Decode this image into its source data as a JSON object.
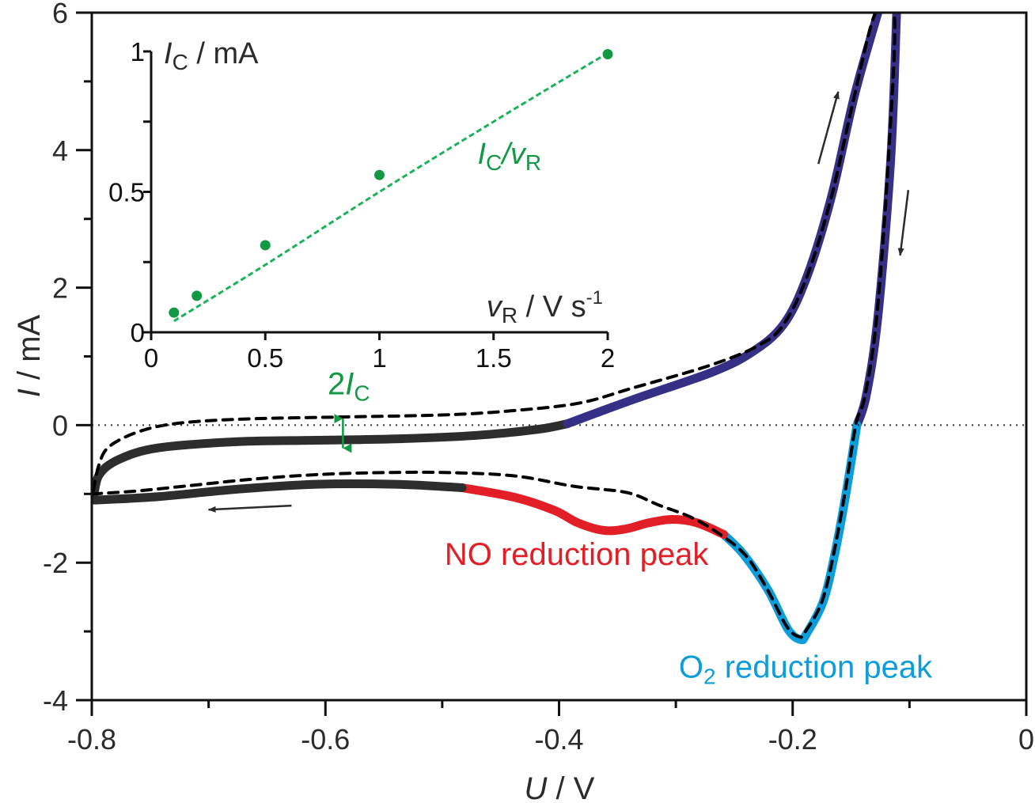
{
  "chart_data": [
    {
      "id": "main",
      "type": "line",
      "title": "",
      "xlabel": "U / V",
      "xlabel_parts": {
        "symbol": "U",
        "unit": " / V"
      },
      "ylabel": "I / mA",
      "ylabel_parts": {
        "symbol": "I",
        "unit": " / mA"
      },
      "xlim": [
        -0.8,
        0
      ],
      "ylim": [
        -4,
        6
      ],
      "xticks": [
        -0.8,
        -0.6,
        -0.4,
        -0.2,
        0
      ],
      "xtick_labels": [
        "-0.8",
        "-0.6",
        "-0.4",
        "-0.2",
        "0"
      ],
      "xminor": [
        -0.7,
        -0.5,
        -0.3,
        -0.1
      ],
      "yticks": [
        -4,
        -2,
        0,
        2,
        4,
        6
      ],
      "ytick_labels": [
        "-4",
        "-2",
        "0",
        "2",
        "4",
        "6"
      ],
      "yminor": [
        -3,
        -1,
        1,
        3,
        5
      ],
      "zero_line": "dotted",
      "grid": false,
      "series": [
        {
          "name": "solid-baseline-forward",
          "color": "#2d2d2d",
          "style": "solid",
          "points": [
            [
              -0.7986,
              -1.09
            ],
            [
              -0.7939,
              -0.73
            ],
            [
              -0.777,
              -0.5
            ],
            [
              -0.743,
              -0.33
            ],
            [
              -0.675,
              -0.24
            ],
            [
              -0.608,
              -0.22
            ],
            [
              -0.54,
              -0.2
            ],
            [
              -0.472,
              -0.15
            ],
            [
              -0.418,
              -0.06
            ],
            [
              -0.393,
              0.02
            ]
          ]
        },
        {
          "name": "solid-oxidation",
          "color": "#362f86",
          "style": "solid",
          "points": [
            [
              -0.393,
              0.02
            ],
            [
              -0.337,
              0.37
            ],
            [
              -0.269,
              0.77
            ],
            [
              -0.235,
              1.06
            ],
            [
              -0.208,
              1.46
            ],
            [
              -0.188,
              2.15
            ],
            [
              -0.167,
              3.31
            ],
            [
              -0.147,
              4.8
            ],
            [
              -0.127,
              6.0
            ]
          ]
        },
        {
          "name": "solid-return-oxidation",
          "color": "#362f86",
          "style": "solid",
          "points": [
            [
              -0.111,
              6.0
            ],
            [
              -0.116,
              3.88
            ],
            [
              -0.127,
              1.58
            ],
            [
              -0.137,
              0.43
            ],
            [
              -0.145,
              0.0
            ]
          ]
        },
        {
          "name": "solid-O2-reduction",
          "color": "#0d9ddb",
          "style": "solid",
          "points": [
            [
              -0.145,
              0.0
            ],
            [
              -0.154,
              -0.96
            ],
            [
              -0.164,
              -1.88
            ],
            [
              -0.174,
              -2.57
            ],
            [
              -0.188,
              -3.03
            ],
            [
              -0.193,
              -3.12
            ],
            [
              -0.204,
              -2.97
            ],
            [
              -0.221,
              -2.4
            ],
            [
              -0.242,
              -1.88
            ],
            [
              -0.259,
              -1.59
            ]
          ]
        },
        {
          "name": "solid-NO-reduction",
          "color": "#e21f26",
          "style": "solid",
          "points": [
            [
              -0.259,
              -1.59
            ],
            [
              -0.282,
              -1.42
            ],
            [
              -0.303,
              -1.37
            ],
            [
              -0.323,
              -1.42
            ],
            [
              -0.343,
              -1.51
            ],
            [
              -0.362,
              -1.53
            ],
            [
              -0.384,
              -1.42
            ],
            [
              -0.404,
              -1.24
            ],
            [
              -0.438,
              -1.05
            ],
            [
              -0.483,
              -0.91
            ]
          ]
        },
        {
          "name": "solid-baseline-return",
          "color": "#2d2d2d",
          "style": "solid",
          "points": [
            [
              -0.483,
              -0.91
            ],
            [
              -0.54,
              -0.86
            ],
            [
              -0.608,
              -0.86
            ],
            [
              -0.675,
              -0.93
            ],
            [
              -0.743,
              -1.04
            ],
            [
              -0.797,
              -1.09
            ]
          ]
        },
        {
          "name": "dashed-reference",
          "color": "#000000",
          "style": "dashed",
          "points": [
            [
              -0.7986,
              -0.95
            ],
            [
              -0.7939,
              -0.58
            ],
            [
              -0.785,
              -0.31
            ],
            [
              -0.759,
              -0.09
            ],
            [
              -0.725,
              0.03
            ],
            [
              -0.668,
              0.09
            ],
            [
              -0.582,
              0.12
            ],
            [
              -0.497,
              0.15
            ],
            [
              -0.44,
              0.21
            ],
            [
              -0.383,
              0.32
            ],
            [
              -0.337,
              0.54
            ],
            [
              -0.269,
              0.88
            ],
            [
              -0.228,
              1.17
            ],
            [
              -0.208,
              1.46
            ],
            [
              -0.188,
              2.15
            ],
            [
              -0.167,
              3.31
            ],
            [
              -0.147,
              4.8
            ],
            [
              -0.129,
              6.0
            ],
            [
              -0.113,
              6.0
            ],
            [
              -0.118,
              3.88
            ],
            [
              -0.128,
              1.58
            ],
            [
              -0.138,
              0.43
            ],
            [
              -0.146,
              0.0
            ],
            [
              -0.155,
              -0.96
            ],
            [
              -0.165,
              -1.88
            ],
            [
              -0.175,
              -2.57
            ],
            [
              -0.189,
              -3.0
            ],
            [
              -0.194,
              -3.08
            ],
            [
              -0.205,
              -2.93
            ],
            [
              -0.222,
              -2.38
            ],
            [
              -0.24,
              -1.9
            ],
            [
              -0.262,
              -1.59
            ],
            [
              -0.287,
              -1.34
            ],
            [
              -0.315,
              -1.16
            ],
            [
              -0.342,
              -0.98
            ],
            [
              -0.387,
              -0.89
            ],
            [
              -0.437,
              -0.74
            ],
            [
              -0.494,
              -0.69
            ],
            [
              -0.551,
              -0.69
            ],
            [
              -0.608,
              -0.72
            ],
            [
              -0.665,
              -0.79
            ],
            [
              -0.722,
              -0.89
            ],
            [
              -0.763,
              -0.96
            ],
            [
              -0.7986,
              -1.0
            ]
          ]
        }
      ],
      "annotations": [
        {
          "name": "double-capacitive-current",
          "text": "2I_C",
          "parts": {
            "num": "2",
            "symbol": "I",
            "sub": "C"
          },
          "color": "#119944",
          "at": [
            -0.58,
            0.45
          ],
          "arrow_from": [
            -0.585,
            0.21
          ],
          "arrow_to": [
            -0.585,
            -0.45
          ]
        },
        {
          "name": "NO-reduction-peak-label",
          "text": "NO reduction peak",
          "color": "#e21f26",
          "at": [
            -0.385,
            -2.03
          ]
        },
        {
          "name": "O2-reduction-peak-label",
          "text": "O2 reduction peak",
          "parts": {
            "pre": "O",
            "sub": "2",
            "post": " reduction peak"
          },
          "color": "#0d9ddb",
          "at": [
            -0.189,
            -3.67
          ]
        },
        {
          "name": "sweep-arrow-cathodic",
          "from": [
            -0.629,
            -1.17
          ],
          "to": [
            -0.7,
            -1.23
          ]
        },
        {
          "name": "sweep-arrow-anodic-up",
          "from": [
            -0.178,
            3.8
          ],
          "to": [
            -0.161,
            4.85
          ]
        },
        {
          "name": "sweep-arrow-down",
          "from": [
            -0.101,
            3.42
          ],
          "to": [
            -0.108,
            2.47
          ]
        }
      ]
    },
    {
      "id": "inset",
      "type": "scatter",
      "xlabel": "v_R / V s^-1",
      "xlabel_parts": {
        "symbol": "v",
        "sub": "R",
        "unit": " / V s",
        "sup": "-1"
      },
      "ylabel": "I_C / mA",
      "ylabel_parts": {
        "symbol": "I",
        "sub": "C",
        "unit": " / mA"
      },
      "xlim": [
        0,
        2
      ],
      "ylim": [
        0,
        1
      ],
      "xticks": [
        0,
        0.5,
        1,
        1.5,
        2
      ],
      "xtick_labels": [
        "0",
        "0.5",
        "1",
        "1.5",
        "2"
      ],
      "yticks": [
        0,
        0.5,
        1
      ],
      "ytick_labels": [
        "0",
        "0.5",
        "1"
      ],
      "yminor": [
        0.25,
        0.75
      ],
      "grid": false,
      "color": "#119944",
      "x": [
        0.1,
        0.2,
        0.5,
        1.0,
        2.0
      ],
      "y": [
        0.07,
        0.13,
        0.31,
        0.56,
        0.99
      ],
      "fit_line": {
        "name": "I_C/v_R",
        "style": "dashed",
        "points": [
          [
            0.1,
            0.04
          ],
          [
            0.5,
            0.24
          ],
          [
            1.0,
            0.5
          ],
          [
            1.5,
            0.75
          ],
          [
            1.95,
            0.97
          ],
          [
            2.0,
            0.99
          ]
        ]
      },
      "fit_label": {
        "text": "I_C/v_R",
        "parts": {
          "s1": "I",
          "sub1": "C",
          "slash": "/",
          "s2": "v",
          "sub2": "R"
        },
        "at": [
          1.43,
          0.6
        ]
      }
    }
  ]
}
